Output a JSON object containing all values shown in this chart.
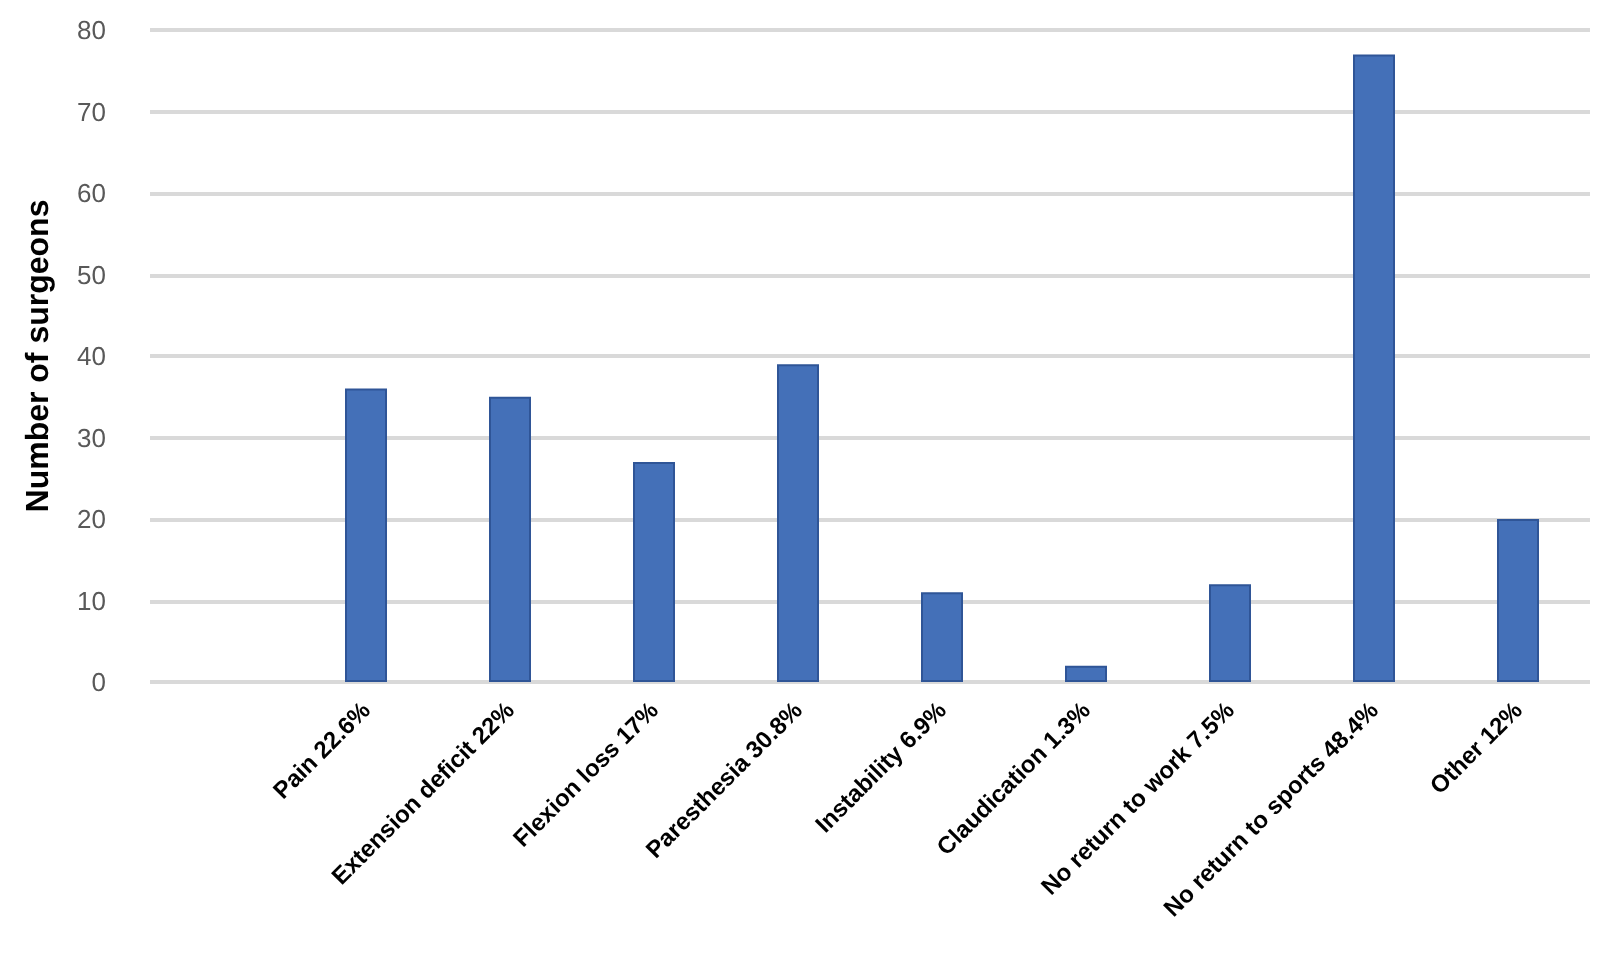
{
  "chart_data": {
    "type": "bar",
    "ylabel": "Number of surgeons",
    "categories": [
      null,
      "Pain 22.6%",
      "Extension deficit 22%",
      "Flexion loss 17%",
      "Paresthesia 30.8%",
      "Instability 6.9%",
      "Claudication 1.3%",
      "No return to work 7.5%",
      "No return to sports 48.4%",
      "Other 12%"
    ],
    "values": [
      null,
      36,
      35,
      27,
      39,
      11,
      2,
      12,
      77,
      20
    ],
    "color": "#4470b8",
    "ylim": [
      0,
      80
    ],
    "yticks": [
      0,
      10,
      20,
      30,
      40,
      50,
      60,
      70,
      80
    ],
    "grid": "y"
  }
}
